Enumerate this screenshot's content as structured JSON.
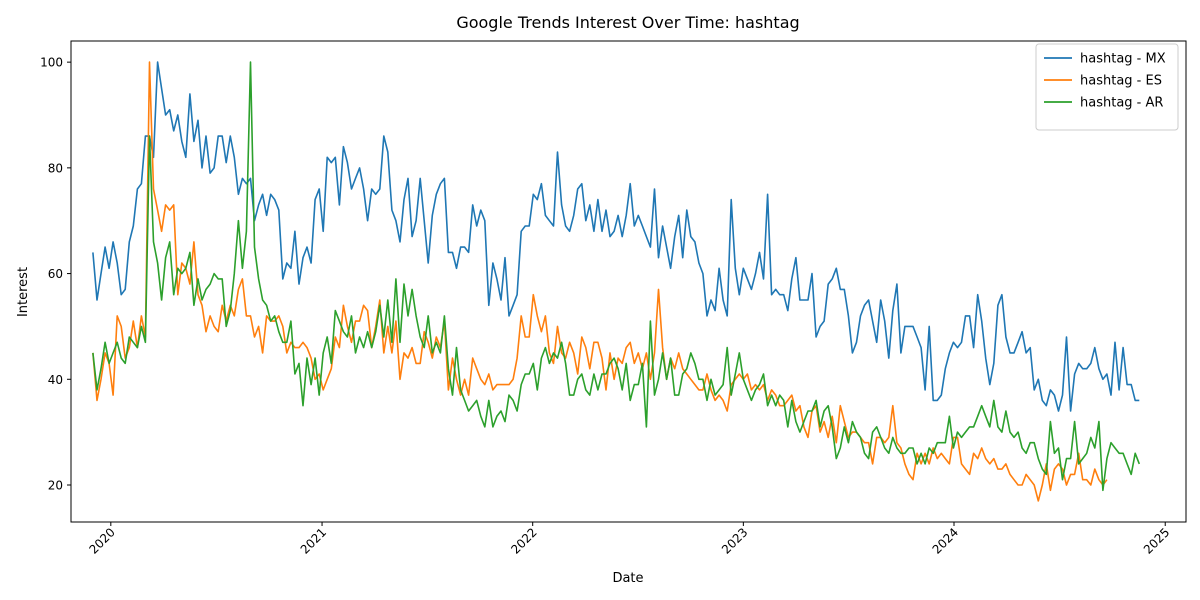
{
  "chart_data": {
    "type": "line",
    "title": "Google Trends Interest Over Time: hashtag",
    "xlabel": "Date",
    "ylabel": "Interest",
    "xlim": [
      "2019-10-24",
      "2025-02-06"
    ],
    "ylim": [
      13,
      104
    ],
    "x_ticks": [
      "2020",
      "2021",
      "2022",
      "2023",
      "2024",
      "2025"
    ],
    "y_ticks": [
      20,
      40,
      60,
      80,
      100
    ],
    "grid": false,
    "legend_position": "top-right",
    "x_start": "2019-12-01",
    "x_step_days": 7,
    "series": [
      {
        "name": "hashtag - MX",
        "color": "#1f77b4",
        "values": [
          64,
          55,
          60,
          65,
          61,
          66,
          62,
          56,
          57,
          66,
          69,
          76,
          77,
          86,
          86,
          82,
          100,
          95,
          90,
          91,
          87,
          90,
          85,
          82,
          94,
          85,
          89,
          80,
          86,
          79,
          80,
          86,
          86,
          81,
          86,
          82,
          75,
          78,
          77,
          78,
          70,
          73,
          75,
          71,
          75,
          74,
          72,
          59,
          62,
          61,
          68,
          58,
          63,
          65,
          62,
          74,
          76,
          68,
          82,
          81,
          82,
          73,
          84,
          81,
          76,
          78,
          80,
          76,
          70,
          76,
          75,
          76,
          86,
          83,
          72,
          70,
          66,
          74,
          78,
          67,
          70,
          78,
          70,
          62,
          71,
          75,
          77,
          78,
          64,
          64,
          61,
          65,
          65,
          64,
          73,
          69,
          72,
          70,
          54,
          62,
          59,
          55,
          63,
          52,
          54,
          56,
          68,
          69,
          69,
          75,
          74,
          77,
          71,
          70,
          69,
          83,
          73,
          69,
          68,
          71,
          76,
          77,
          70,
          73,
          68,
          74,
          68,
          72,
          67,
          68,
          71,
          67,
          71,
          77,
          69,
          71,
          69,
          67,
          65,
          76,
          63,
          69,
          65,
          61,
          67,
          71,
          63,
          72,
          67,
          66,
          62,
          60,
          52,
          55,
          53,
          61,
          55,
          52,
          74,
          61,
          56,
          61,
          59,
          57,
          60,
          64,
          59,
          75,
          56,
          57,
          56,
          56,
          53,
          59,
          63,
          55,
          55,
          55,
          60,
          48,
          50,
          51,
          58,
          59,
          61,
          57,
          57,
          52,
          45,
          47,
          52,
          54,
          55,
          51,
          47,
          55,
          51,
          44,
          53,
          58,
          45,
          50,
          50,
          50,
          48,
          46,
          38,
          50,
          36,
          36,
          37,
          42,
          45,
          47,
          46,
          47,
          52,
          52,
          46,
          56,
          51,
          44,
          39,
          43,
          54,
          56,
          48,
          45,
          45,
          47,
          49,
          45,
          46,
          38,
          40,
          36,
          35,
          38,
          37,
          34,
          37,
          48,
          34,
          41,
          43,
          42,
          42,
          43,
          46,
          42,
          40,
          41,
          37,
          47,
          38,
          46,
          39,
          39,
          36,
          36
        ]
      },
      {
        "name": "hashtag - ES",
        "color": "#ff7f0e",
        "values": [
          45,
          36,
          40,
          45,
          43,
          37,
          52,
          50,
          44,
          46,
          51,
          46,
          52,
          48,
          100,
          76,
          72,
          68,
          73,
          72,
          73,
          56,
          62,
          61,
          58,
          66,
          56,
          54,
          49,
          52,
          50,
          49,
          54,
          51,
          54,
          52,
          57,
          59,
          52,
          52,
          48,
          50,
          45,
          52,
          51,
          51,
          52,
          50,
          45,
          47,
          46,
          46,
          47,
          46,
          44,
          40,
          41,
          38,
          40,
          42,
          48,
          46,
          54,
          50,
          47,
          51,
          51,
          54,
          53,
          46,
          50,
          55,
          45,
          50,
          45,
          51,
          40,
          45,
          44,
          46,
          43,
          43,
          49,
          47,
          44,
          48,
          46,
          51,
          38,
          44,
          40,
          37,
          40,
          37,
          44,
          42,
          40,
          39,
          41,
          38,
          39,
          39,
          39,
          39,
          40,
          44,
          52,
          48,
          48,
          56,
          52,
          49,
          52,
          45,
          43,
          50,
          45,
          44,
          47,
          45,
          41,
          48,
          46,
          42,
          47,
          47,
          44,
          38,
          45,
          40,
          44,
          43,
          46,
          47,
          43,
          45,
          42,
          45,
          40,
          45,
          57,
          46,
          40,
          44,
          42,
          45,
          42,
          41,
          40,
          39,
          38,
          38,
          41,
          38,
          36,
          37,
          36,
          34,
          39,
          40,
          41,
          40,
          41,
          38,
          39,
          38,
          39,
          36,
          38,
          37,
          35,
          35,
          36,
          37,
          34,
          35,
          31,
          29,
          34,
          35,
          30,
          32,
          29,
          33,
          28,
          35,
          32,
          29,
          30,
          30,
          29,
          28,
          28,
          24,
          29,
          29,
          28,
          29,
          35,
          28,
          27,
          24,
          22,
          21,
          26,
          24,
          26,
          24,
          27,
          25,
          26,
          25,
          24,
          29,
          29,
          24,
          23,
          22,
          26,
          25,
          27,
          25,
          24,
          25,
          23,
          23,
          24,
          22,
          21,
          20,
          20,
          22,
          21,
          20,
          17,
          20,
          24,
          19,
          23,
          24,
          23,
          20,
          22,
          22,
          26,
          21,
          21,
          20,
          23,
          21,
          20,
          21
        ]
      },
      {
        "name": "hashtag - AR",
        "color": "#2ca02c",
        "values": [
          45,
          38,
          42,
          47,
          43,
          45,
          47,
          44,
          43,
          48,
          47,
          46,
          50,
          47,
          86,
          66,
          62,
          55,
          63,
          66,
          56,
          61,
          60,
          61,
          64,
          54,
          59,
          55,
          57,
          58,
          60,
          59,
          59,
          50,
          53,
          60,
          70,
          61,
          68,
          100,
          65,
          59,
          55,
          54,
          51,
          52,
          49,
          47,
          47,
          51,
          41,
          43,
          35,
          44,
          39,
          44,
          37,
          45,
          48,
          43,
          53,
          51,
          49,
          48,
          52,
          45,
          48,
          46,
          49,
          46,
          49,
          54,
          48,
          55,
          47,
          59,
          47,
          58,
          52,
          57,
          52,
          48,
          46,
          52,
          45,
          47,
          45,
          52,
          42,
          37,
          46,
          38,
          36,
          34,
          35,
          36,
          33,
          31,
          36,
          31,
          33,
          34,
          32,
          37,
          36,
          34,
          39,
          41,
          41,
          43,
          38,
          44,
          46,
          43,
          45,
          44,
          47,
          43,
          37,
          37,
          40,
          41,
          38,
          37,
          41,
          38,
          41,
          41,
          43,
          44,
          42,
          38,
          43,
          36,
          39,
          39,
          43,
          31,
          51,
          37,
          40,
          45,
          40,
          44,
          37,
          37,
          41,
          42,
          45,
          43,
          40,
          40,
          36,
          40,
          37,
          38,
          39,
          46,
          37,
          41,
          45,
          40,
          38,
          36,
          38,
          39,
          41,
          35,
          37,
          35,
          37,
          36,
          31,
          36,
          32,
          30,
          32,
          34,
          34,
          36,
          31,
          34,
          35,
          31,
          25,
          27,
          31,
          28,
          32,
          30,
          29,
          26,
          25,
          30,
          31,
          29,
          27,
          26,
          29,
          27,
          26,
          26,
          27,
          27,
          24,
          26,
          24,
          27,
          26,
          28,
          28,
          28,
          33,
          27,
          30,
          29,
          30,
          31,
          31,
          33,
          35,
          33,
          31,
          36,
          31,
          30,
          34,
          30,
          29,
          30,
          27,
          26,
          28,
          28,
          25,
          23,
          22,
          32,
          26,
          27,
          21,
          25,
          25,
          32,
          24,
          25,
          26,
          29,
          27,
          32,
          19,
          25,
          28,
          27,
          26,
          26,
          24,
          22,
          26,
          24
        ]
      }
    ]
  }
}
